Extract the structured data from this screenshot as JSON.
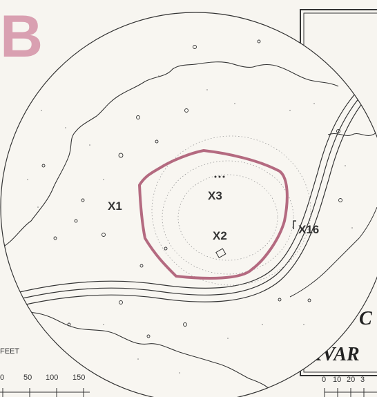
{
  "panel_letter": "B",
  "labels": {
    "x1": "X1",
    "x2": "X2",
    "x3": "X3",
    "x16": "X16"
  },
  "scale_left": {
    "unit": "FEET",
    "ticks": [
      "0",
      "50",
      "100",
      "150"
    ]
  },
  "inset": {
    "title_fragment_1": "C",
    "title_fragment_2": "XVAR",
    "ticks": [
      "0",
      "10",
      "20",
      "3"
    ]
  },
  "colors": {
    "highlight_outline": "#b46a80",
    "panel_letter": "#d9a0b1",
    "ink": "#333333",
    "paper": "#f7f5f0"
  }
}
